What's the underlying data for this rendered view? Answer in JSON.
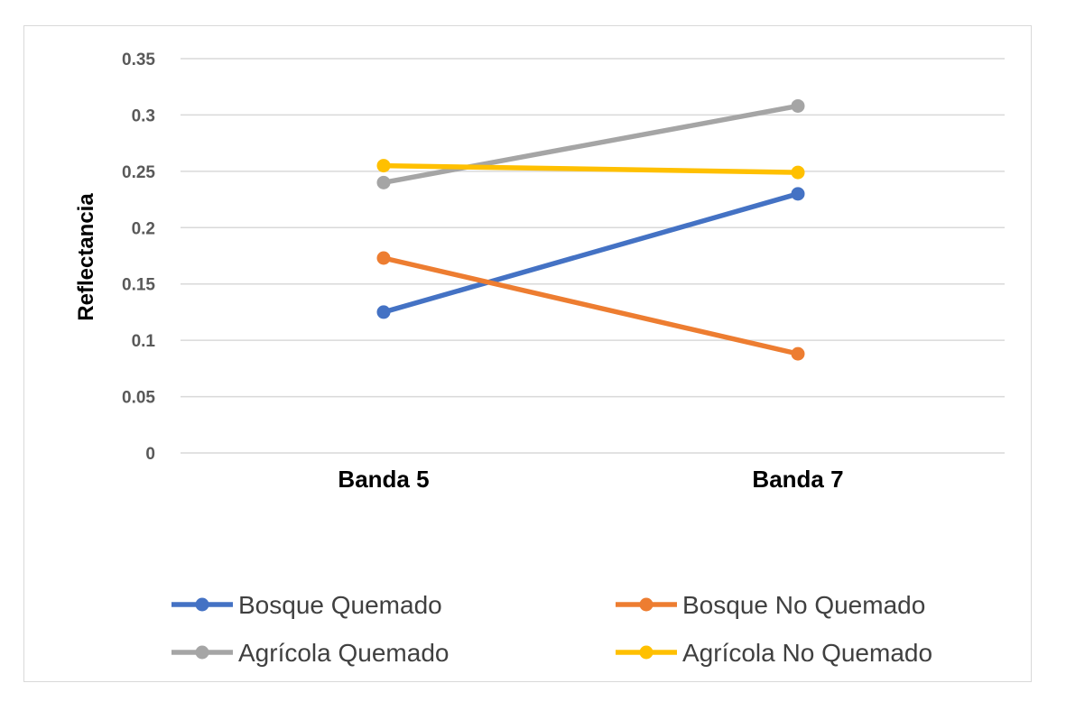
{
  "chart_data": {
    "type": "line",
    "categories": [
      "Banda 5",
      "Banda 7"
    ],
    "ylabel": "Reflectancia",
    "xlabel": "",
    "title": "",
    "ylim": [
      0,
      0.35
    ],
    "yticks": [
      0,
      0.05,
      0.1,
      0.15,
      0.2,
      0.25,
      0.3,
      0.35
    ],
    "ytick_labels": [
      "0",
      "0.05",
      "0.1",
      "0.15",
      "0.2",
      "0.25",
      "0.3",
      "0.35"
    ],
    "grid": true,
    "legend_position": "bottom",
    "series": [
      {
        "name": "Bosque Quemado",
        "values": [
          0.125,
          0.23
        ],
        "color": "#4472c4"
      },
      {
        "name": "Bosque No Quemado",
        "values": [
          0.173,
          0.088
        ],
        "color": "#ed7d31"
      },
      {
        "name": "Agrícola Quemado",
        "values": [
          0.24,
          0.308
        ],
        "color": "#a5a5a5"
      },
      {
        "name": "Agrícola No Quemado",
        "values": [
          0.255,
          0.249
        ],
        "color": "#ffc000"
      }
    ]
  }
}
